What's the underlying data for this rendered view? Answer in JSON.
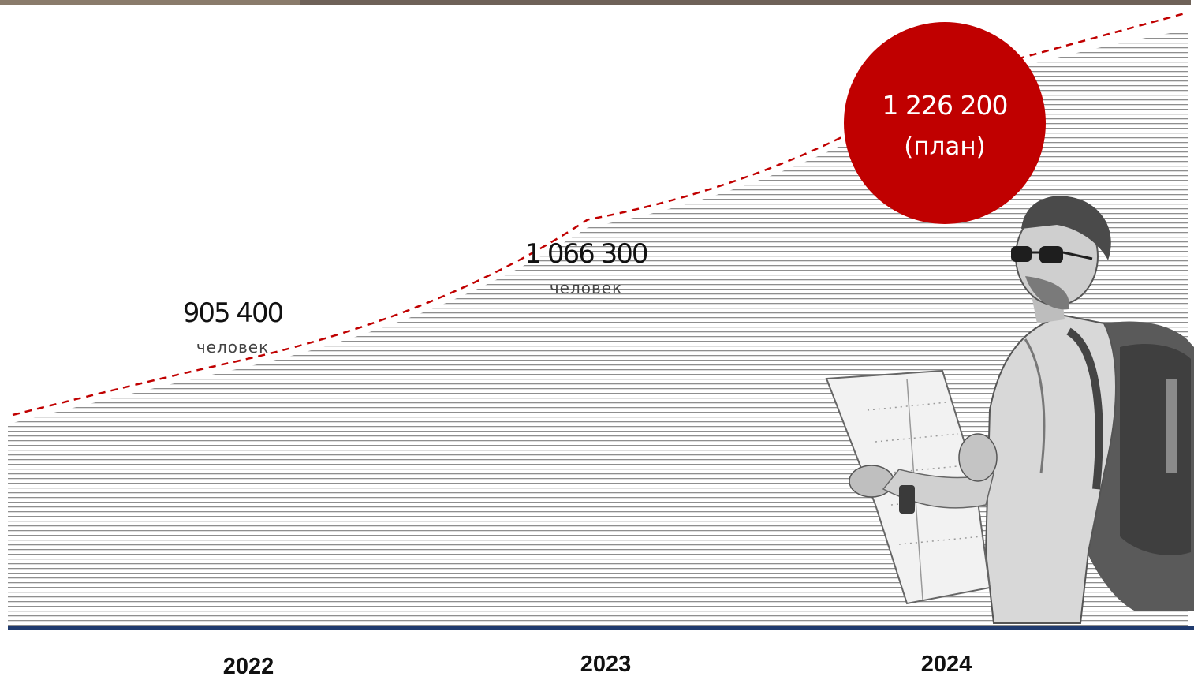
{
  "chart_data": {
    "type": "area",
    "categories": [
      "2022",
      "2023",
      "2024"
    ],
    "series": [
      {
        "values": [
          905400,
          1066300,
          1226200
        ]
      }
    ],
    "data_labels": [
      {
        "value": "905 400",
        "unit": "человек"
      },
      {
        "value": "1 066 300",
        "unit": "человек"
      }
    ],
    "plan_label": {
      "value": "1 226 200",
      "note": "(план)"
    },
    "line_color": "#c00000",
    "fill_color": "#9a9a9a",
    "baseline_color": "#1f3a6e",
    "grid": false
  },
  "illustration": {
    "icon": "traveler-with-map-and-backpack"
  }
}
